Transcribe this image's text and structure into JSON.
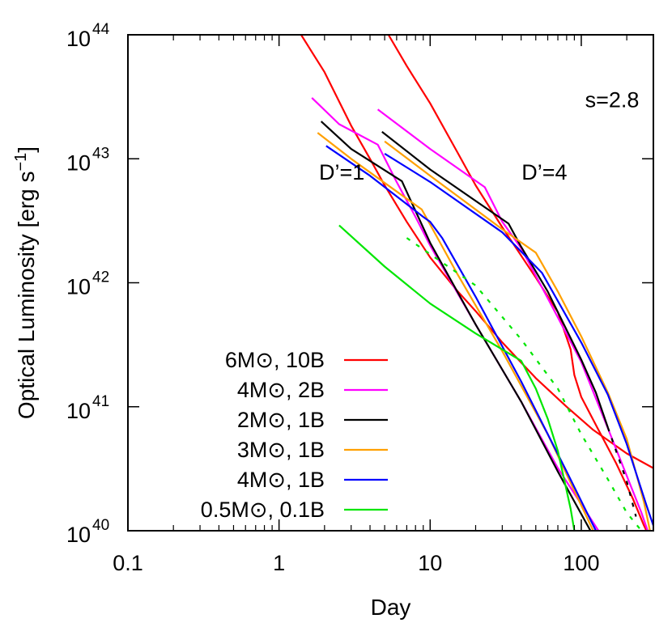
{
  "chart_data": {
    "type": "line",
    "title": "",
    "xlabel": "Day",
    "ylabel": "Optical Luminosity [erg s",
    "ylabel_sup": "−1",
    "ylabel_tail": "]",
    "x_scale": "log",
    "y_scale": "log",
    "xlim": [
      0.1,
      300
    ],
    "ylim": [
      1e+40,
      1e+44
    ],
    "grid": false,
    "legend_position": "bottom-left",
    "x_ticks": [
      {
        "value": 0.1,
        "label": "0.1"
      },
      {
        "value": 1,
        "label": "1"
      },
      {
        "value": 10,
        "label": "10"
      },
      {
        "value": 100,
        "label": "100"
      }
    ],
    "y_ticks": [
      {
        "value": 1e+40,
        "base": "10",
        "exp": "40"
      },
      {
        "value": 1e+41,
        "base": "10",
        "exp": "41"
      },
      {
        "value": 1e+42,
        "base": "10",
        "exp": "42"
      },
      {
        "value": 1e+43,
        "base": "10",
        "exp": "43"
      },
      {
        "value": 1e+44,
        "base": "10",
        "exp": "44"
      }
    ],
    "annotations": [
      {
        "text": "s=2.8",
        "x": 160,
        "y": 2.6e+43
      },
      {
        "text": "D’=1",
        "x": 2.6,
        "y": 6.8e+42
      },
      {
        "text": "D’=4",
        "x": 57,
        "y": 6.8e+42
      }
    ],
    "series": [
      {
        "name": "6M⊙, 10B",
        "color": "#ff0000",
        "dash": false,
        "points": [
          [
            1.4,
            1e+44
          ],
          [
            2,
            5e+43
          ],
          [
            3,
            1.85e+43
          ],
          [
            4,
            1e+43
          ],
          [
            5,
            6.1e+42
          ],
          [
            7,
            3.1e+42
          ],
          [
            10,
            1.6e+42
          ],
          [
            15,
            8.7e+41
          ],
          [
            20,
            5.9e+41
          ],
          [
            30,
            3.3e+41
          ],
          [
            50,
            1.7e+41
          ],
          [
            80,
            1e+41
          ],
          [
            120,
            6.5e+40
          ],
          [
            200,
            4.2e+40
          ],
          [
            300,
            3.2e+40
          ]
        ]
      },
      {
        "name": "6M⊙, 10B",
        "color": "#ff0000",
        "dash": false,
        "points": [
          [
            5.3,
            1e+44
          ],
          [
            7,
            5.6e+43
          ],
          [
            10,
            2.8e+43
          ],
          [
            15,
            1.15e+43
          ],
          [
            20,
            6.1e+42
          ],
          [
            30,
            2.8e+42
          ],
          [
            50,
            1.1e+42
          ],
          [
            70,
            5.8e+41
          ],
          [
            80,
            3.6e+41
          ],
          [
            85,
            2.9e+41
          ],
          [
            90,
            1.8e+41
          ],
          [
            100,
            1.2e+41
          ],
          [
            130,
            6.5e+40
          ],
          [
            170,
            3.5e+40
          ],
          [
            220,
            1.8e+40
          ],
          [
            260,
            1.1e+40
          ],
          [
            270,
            1e+40
          ]
        ]
      },
      {
        "name": "4M⊙, 2B",
        "color": "#ff00ff",
        "dash": false,
        "points": [
          [
            1.65,
            3.1e+43
          ],
          [
            2.5,
            1.9e+43
          ],
          [
            4.5,
            1.3e+43
          ],
          [
            6,
            6.5e+42
          ],
          [
            8,
            3.4e+42
          ],
          [
            10,
            2e+42
          ],
          [
            20,
            4.6e+41
          ],
          [
            40,
            1.1e+41
          ],
          [
            70,
            3.2e+40
          ],
          [
            130,
            1e+40
          ]
        ]
      },
      {
        "name": "4M⊙, 2B",
        "color": "#ff00ff",
        "dash": false,
        "points": [
          [
            4.5,
            2.5e+43
          ],
          [
            10,
            1.2e+43
          ],
          [
            23,
            5.9e+42
          ],
          [
            30,
            3.1e+42
          ],
          [
            40,
            1.9e+42
          ],
          [
            60,
            7.5e+41
          ],
          [
            100,
            2.3e+41
          ],
          [
            150,
            6.7e+40
          ],
          [
            250,
            1.4e+40
          ],
          [
            275,
            1e+40
          ]
        ]
      },
      {
        "name": "2M⊙, 1B",
        "color": "#000000",
        "dash": false,
        "points": [
          [
            1.9,
            2e+43
          ],
          [
            3,
            1.2e+43
          ],
          [
            6.5,
            6.6e+42
          ],
          [
            7.5,
            4.5e+42
          ],
          [
            10,
            2.1e+42
          ],
          [
            20,
            4.6e+41
          ],
          [
            40,
            1.1e+41
          ],
          [
            70,
            3e+40
          ],
          [
            115,
            1e+40
          ]
        ]
      },
      {
        "name": "2M⊙, 1B",
        "color": "#000000",
        "dash": false,
        "points": [
          [
            4.8,
            1.65e+43
          ],
          [
            10,
            8.2e+42
          ],
          [
            33,
            3e+42
          ],
          [
            40,
            1.95e+42
          ],
          [
            60,
            8.5e+41
          ],
          [
            100,
            2.4e+41
          ],
          [
            125,
            1.3e+41
          ],
          [
            150,
            6.8e+40
          ]
        ]
      },
      {
        "name": "2M⊙, 1B",
        "color": "#000000",
        "dash": true,
        "points": [
          [
            150,
            6.8e+40
          ],
          [
            200,
            2.5e+40
          ],
          [
            230,
            1.3e+40
          ]
        ]
      },
      {
        "name": "3M⊙, 1B",
        "color": "#ffa000",
        "dash": false,
        "points": [
          [
            1.8,
            1.62e+43
          ],
          [
            3,
            1e+43
          ],
          [
            8.8,
            3.9e+42
          ],
          [
            9.5,
            3.3e+42
          ],
          [
            15,
            1.2e+42
          ],
          [
            30,
            2.8e+41
          ],
          [
            60,
            6e+40
          ],
          [
            100,
            1.6e+40
          ],
          [
            120,
            1e+40
          ]
        ]
      },
      {
        "name": "3M⊙, 1B",
        "color": "#ffa000",
        "dash": false,
        "points": [
          [
            5,
            1.38e+43
          ],
          [
            10,
            7.3e+42
          ],
          [
            30,
            2.7e+42
          ],
          [
            50,
            1.75e+42
          ],
          [
            70,
            8.5e+41
          ],
          [
            100,
            3.7e+41
          ],
          [
            150,
            1.3e+41
          ],
          [
            200,
            5.5e+40
          ],
          [
            260,
            1.7e+40
          ],
          [
            285,
            1e+40
          ]
        ]
      },
      {
        "name": "4M⊙, 1B",
        "color": "#0000ff",
        "dash": false,
        "points": [
          [
            2.05,
            1.27e+43
          ],
          [
            4,
            7.3e+42
          ],
          [
            9,
            3.4e+42
          ],
          [
            10,
            3.1e+42
          ],
          [
            12,
            2.3e+42
          ],
          [
            20,
            7.7e+41
          ],
          [
            40,
            1.6e+41
          ],
          [
            80,
            3e+40
          ],
          [
            125,
            1e+40
          ]
        ]
      },
      {
        "name": "4M⊙, 1B",
        "color": "#0000ff",
        "dash": false,
        "points": [
          [
            5,
            1.1e+43
          ],
          [
            10,
            6.5e+42
          ],
          [
            30,
            2.55e+42
          ],
          [
            50,
            1.35e+42
          ],
          [
            55,
            1.2e+42
          ],
          [
            100,
            3.3e+41
          ],
          [
            150,
            1.25e+41
          ],
          [
            200,
            5e+40
          ],
          [
            270,
            1.6e+40
          ],
          [
            300,
            1.1e+40
          ]
        ]
      },
      {
        "name": "0.5M⊙, 0.1B",
        "color": "#00e600",
        "dash": false,
        "points": [
          [
            2.5,
            2.9e+42
          ],
          [
            5,
            1.35e+42
          ],
          [
            10,
            6.8e+41
          ],
          [
            20,
            3.9e+41
          ],
          [
            40,
            2.35e+41
          ],
          [
            50,
            1.4e+41
          ],
          [
            60,
            8e+40
          ],
          [
            70,
            4.4e+40
          ],
          [
            80,
            2.1e+40
          ],
          [
            85,
            1.5e+40
          ],
          [
            90,
            1e+40
          ]
        ]
      },
      {
        "name": "0.5M⊙, 0.1B",
        "color": "#00e600",
        "dash": true,
        "points": [
          [
            7,
            2.3e+42
          ],
          [
            10,
            1.7e+42
          ],
          [
            20,
            9.5e+41
          ],
          [
            40,
            3.5e+41
          ],
          [
            70,
            1.4e+41
          ],
          [
            100,
            6e+40
          ],
          [
            150,
            2.6e+40
          ],
          [
            200,
            1.4e+40
          ],
          [
            250,
            1e+40
          ]
        ]
      }
    ],
    "legend": [
      {
        "label": "6M⊙, 10B",
        "color": "#ff0000"
      },
      {
        "label": "4M⊙, 2B",
        "color": "#ff00ff"
      },
      {
        "label": "2M⊙, 1B",
        "color": "#000000"
      },
      {
        "label": "3M⊙, 1B",
        "color": "#ffa000"
      },
      {
        "label": "4M⊙, 1B",
        "color": "#0000ff"
      },
      {
        "label": "0.5M⊙, 0.1B",
        "color": "#00e600"
      }
    ]
  }
}
